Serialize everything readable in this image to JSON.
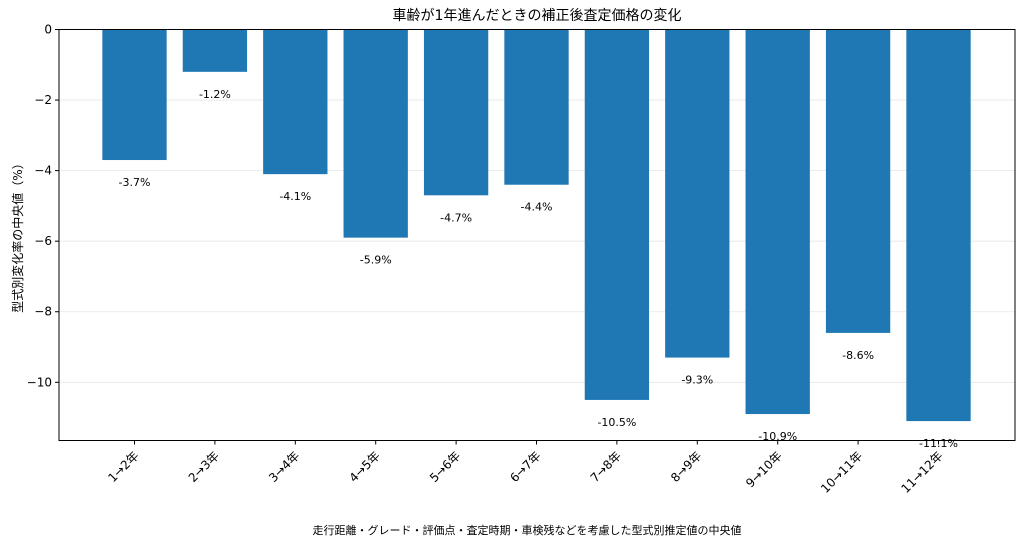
{
  "chart_data": {
    "type": "bar",
    "title": "車齢が1年進んだときの補正後査定価格の変化",
    "ylabel": "型式別変化率の中央値（%）",
    "xlabel": "",
    "note": "走行距離・グレード・評価点・査定時期・車検残などを考慮した型式別推定値の中央値",
    "categories": [
      "1→2年",
      "2→3年",
      "3→4年",
      "4→5年",
      "5→6年",
      "6→7年",
      "7→8年",
      "8→9年",
      "9→10年",
      "10→11年",
      "11→12年"
    ],
    "values": [
      -3.7,
      -1.2,
      -4.1,
      -5.9,
      -4.7,
      -4.4,
      -10.5,
      -9.3,
      -10.9,
      -8.6,
      -11.1
    ],
    "data_labels": [
      "-3.7%",
      "-1.2%",
      "-4.1%",
      "-5.9%",
      "-4.7%",
      "-4.4%",
      "-10.5%",
      "-9.3%",
      "-10.9%",
      "-8.6%",
      "-11.1%"
    ],
    "yticks": [
      0,
      -2,
      -4,
      -6,
      -8,
      -10
    ],
    "ytick_labels": [
      "0",
      "−2",
      "−4",
      "−6",
      "−8",
      "−10"
    ],
    "ylim": [
      -11.65,
      0
    ],
    "grid": true,
    "bar_color": "#1f77b4"
  }
}
